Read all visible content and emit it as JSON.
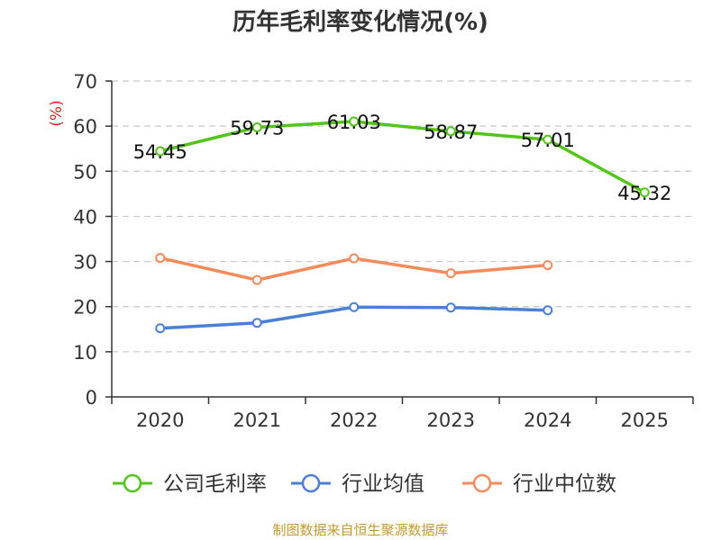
{
  "chart_data": {
    "type": "line",
    "title": "历年毛利率变化情况(%)",
    "ylabel": "(%)",
    "xlabel": "",
    "categories": [
      "2020",
      "2021",
      "2022",
      "2023",
      "2024",
      "2025"
    ],
    "ylim": [
      0,
      70
    ],
    "yticks": [
      0,
      10,
      20,
      30,
      40,
      50,
      60,
      70
    ],
    "grid": true,
    "legend_position": "bottom",
    "series": [
      {
        "name": "公司毛利率",
        "color": "#52c41a",
        "values": [
          54.45,
          59.73,
          61.03,
          58.87,
          57.01,
          45.32
        ],
        "show_labels": true
      },
      {
        "name": "行业均值",
        "color": "#4a7fd8",
        "values": [
          15.2,
          16.4,
          19.9,
          19.8,
          19.2,
          null
        ],
        "show_labels": false
      },
      {
        "name": "行业中位数",
        "color": "#f58a5b",
        "values": [
          30.8,
          25.9,
          30.7,
          27.4,
          29.2,
          null
        ],
        "show_labels": false
      }
    ]
  },
  "footer": "制图数据来自恒生聚源数据库"
}
